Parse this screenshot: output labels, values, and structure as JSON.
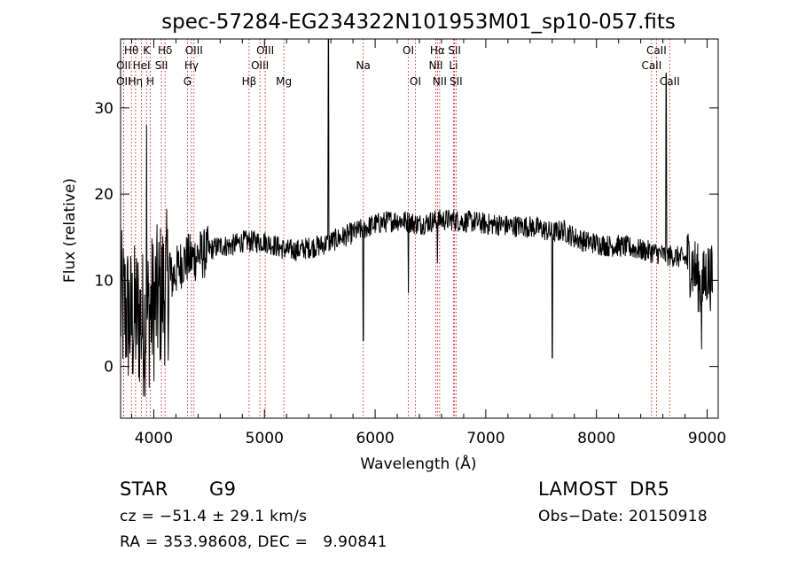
{
  "chart_data": {
    "type": "line",
    "title": "spec-57284-EG234322N101953M01_sp10-057.fits",
    "xlabel": "Wavelength (Å)",
    "ylabel": "Flux (relative)",
    "xlim": [
      3700,
      9100
    ],
    "ylim": [
      -6,
      38
    ],
    "xticks": [
      4000,
      5000,
      6000,
      7000,
      8000,
      9000
    ],
    "yticks": [
      0,
      10,
      20,
      30
    ],
    "grid": false,
    "line_color": "#000000",
    "marker_color": "#cc0000",
    "continuum": {
      "x": [
        3700,
        3750,
        3800,
        3850,
        3900,
        3950,
        4000,
        4050,
        4100,
        4150,
        4200,
        4250,
        4300,
        4350,
        4400,
        4450,
        4500,
        4600,
        4700,
        4800,
        4900,
        5000,
        5100,
        5200,
        5300,
        5400,
        5500,
        5600,
        5700,
        5800,
        5900,
        6000,
        6100,
        6200,
        6300,
        6400,
        6500,
        6600,
        6700,
        6800,
        6900,
        7000,
        7100,
        7200,
        7300,
        7400,
        7500,
        7600,
        7700,
        7800,
        7900,
        8000,
        8100,
        8200,
        8300,
        8400,
        8500,
        8600,
        8700,
        8800,
        8850,
        8900,
        8950,
        9000,
        9050
      ],
      "y": [
        7,
        6.5,
        5,
        6,
        5,
        6,
        7,
        8,
        9,
        10,
        11,
        12,
        12.5,
        12.5,
        13,
        13,
        13.5,
        14,
        14,
        14.5,
        14.5,
        14.5,
        14,
        13.5,
        13.5,
        13.8,
        14,
        14.5,
        15,
        15.5,
        16,
        16.5,
        16.8,
        17,
        16.8,
        16.5,
        16.8,
        17,
        17,
        16.8,
        16.8,
        16.5,
        16.5,
        16.3,
        16.3,
        16.2,
        16,
        15.5,
        15.8,
        15,
        14.5,
        14.3,
        14,
        14,
        13.8,
        13.5,
        13.3,
        13,
        12.8,
        12.5,
        12,
        11,
        9,
        11,
        10
      ]
    },
    "features": [
      {
        "x": 3934,
        "y": 28
      },
      {
        "x": 5577,
        "y": 38
      },
      {
        "x": 5893,
        "y": 3
      },
      {
        "x": 6300,
        "y": 8.5
      },
      {
        "x": 6563,
        "y": 12
      },
      {
        "x": 7600,
        "y": 1
      },
      {
        "x": 8630,
        "y": 34
      },
      {
        "x": 8950,
        "y": 2
      }
    ],
    "lines": [
      {
        "name": "Hθ",
        "x": 3798,
        "row": 1
      },
      {
        "name": "OII",
        "x": 3727,
        "row": 2
      },
      {
        "name": "OII",
        "x": 3727,
        "row": 3
      },
      {
        "name": "K",
        "x": 3934,
        "row": 1
      },
      {
        "name": "HeI",
        "x": 3889,
        "row": 2
      },
      {
        "name": "Hη",
        "x": 3835,
        "row": 3
      },
      {
        "name": "Hδ",
        "x": 4102,
        "row": 1
      },
      {
        "name": "SII",
        "x": 4069,
        "row": 2
      },
      {
        "name": "H",
        "x": 3969,
        "row": 3
      },
      {
        "name": "OIII",
        "x": 4363,
        "row": 1
      },
      {
        "name": "Hγ",
        "x": 4340,
        "row": 2
      },
      {
        "name": "G",
        "x": 4304,
        "row": 3
      },
      {
        "name": "Hβ",
        "x": 4861,
        "row": 3
      },
      {
        "name": "OIII",
        "x": 5007,
        "row": 1
      },
      {
        "name": "OIII",
        "x": 4959,
        "row": 2
      },
      {
        "name": "Mg",
        "x": 5175,
        "row": 3
      },
      {
        "name": "Na",
        "x": 5893,
        "row": 2
      },
      {
        "name": "OI",
        "x": 6300,
        "row": 1
      },
      {
        "name": "OI",
        "x": 6364,
        "row": 3
      },
      {
        "name": "Hα",
        "x": 6563,
        "row": 1
      },
      {
        "name": "SII",
        "x": 6717,
        "row": 1
      },
      {
        "name": "NII",
        "x": 6548,
        "row": 2
      },
      {
        "name": "Li",
        "x": 6708,
        "row": 2
      },
      {
        "name": "NII",
        "x": 6583,
        "row": 3
      },
      {
        "name": "SII",
        "x": 6731,
        "row": 3
      },
      {
        "name": "CaII",
        "x": 8542,
        "row": 1
      },
      {
        "name": "CaII",
        "x": 8498,
        "row": 2
      },
      {
        "name": "CaII",
        "x": 8662,
        "row": 3
      }
    ]
  },
  "info": {
    "class_label": "STAR",
    "subclass": "G9",
    "survey": "LAMOST  DR5",
    "cz": "cz = −51.4 ± 29.1 km/s",
    "obs_date": "Obs−Date: 20150918",
    "coords": "RA = 353.98608, DEC =   9.90841"
  }
}
